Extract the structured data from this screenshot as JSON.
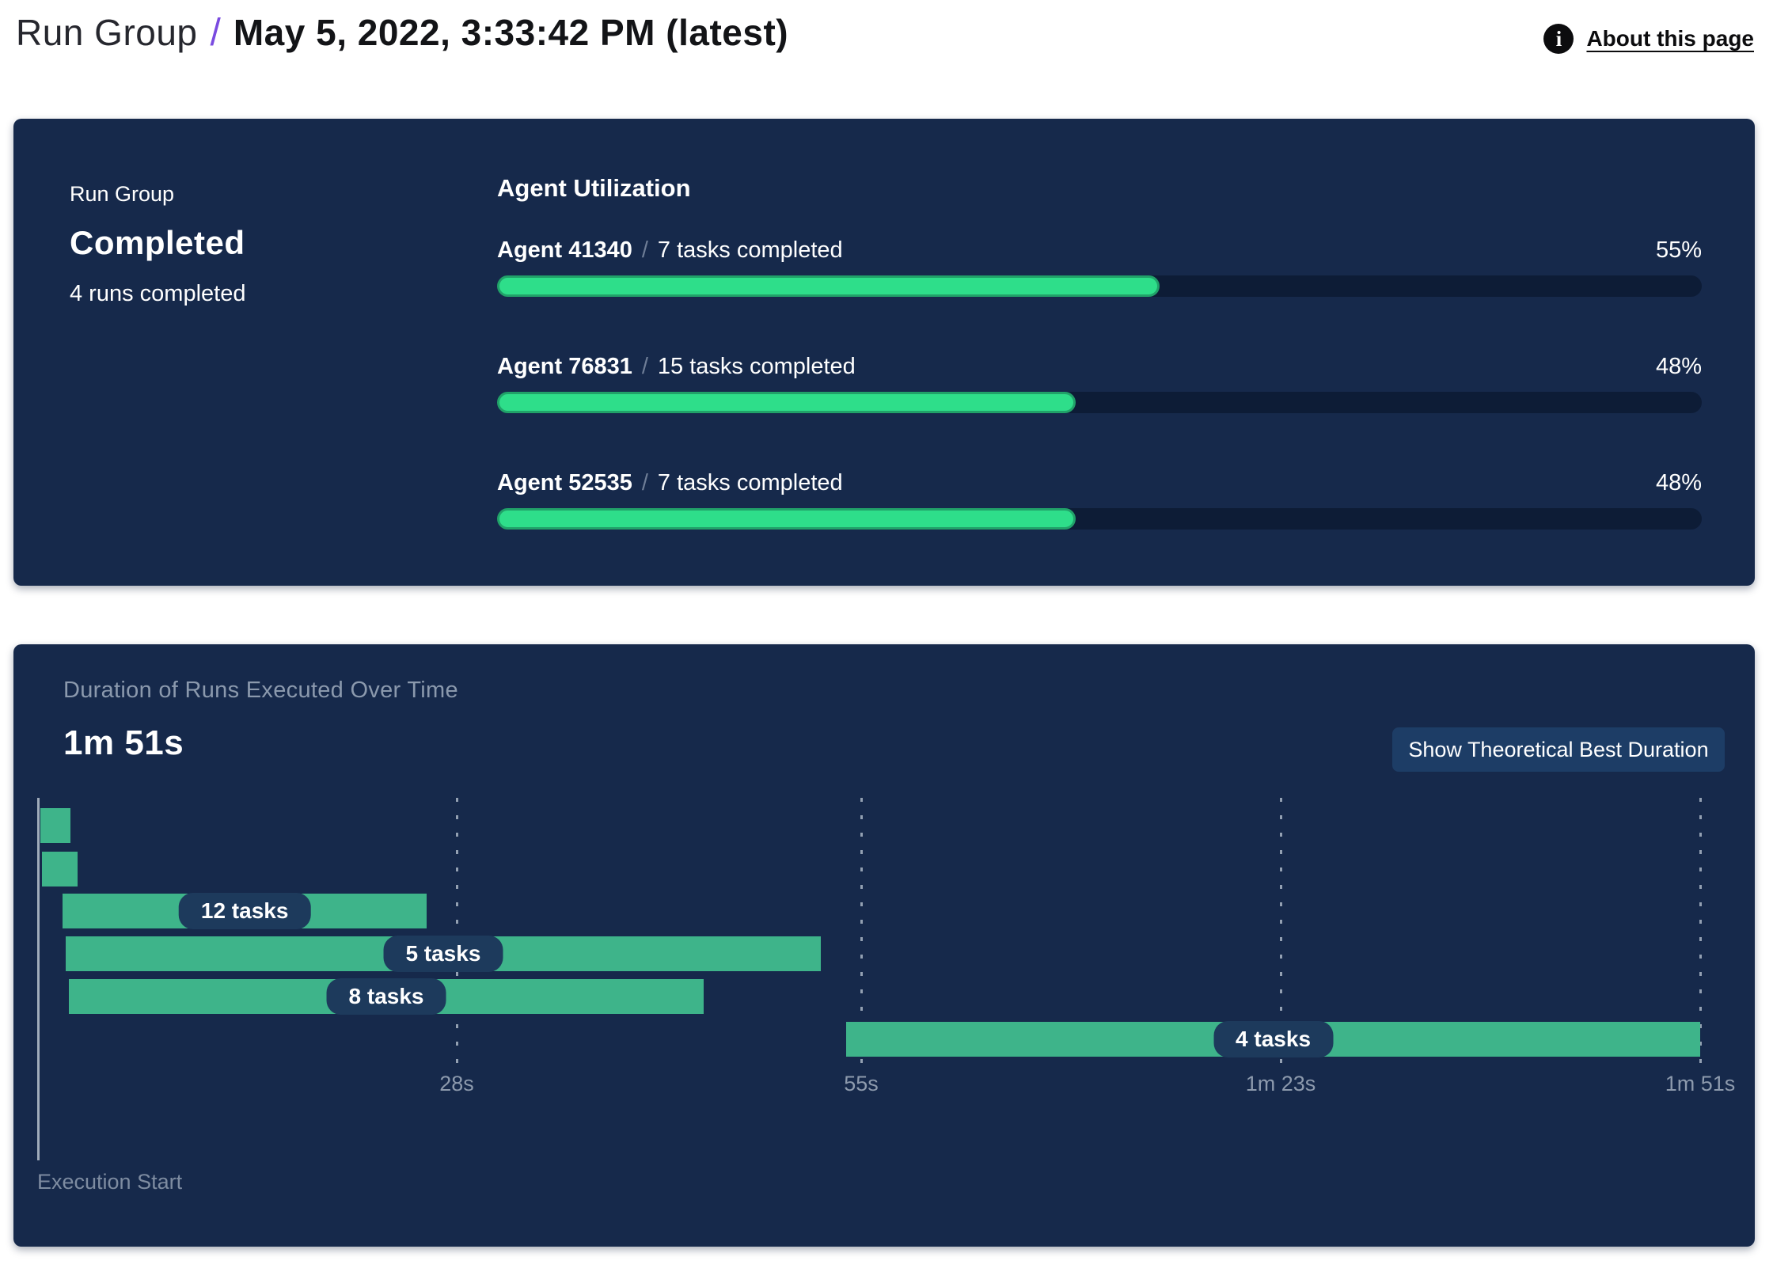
{
  "header": {
    "breadcrumb_root": "Run Group",
    "separator": "/",
    "title": "May 5, 2022, 3:33:42 PM (latest)",
    "about_label": "About this page",
    "info_icon_glyph": "i"
  },
  "run_summary": {
    "label": "Run Group",
    "status": "Completed",
    "detail": "4 runs completed"
  },
  "agent_utilization": {
    "heading": "Agent Utilization",
    "separator": "/",
    "agents": [
      {
        "name": "Agent 41340",
        "tasks": "7 tasks completed",
        "percent": 55,
        "percent_label": "55%"
      },
      {
        "name": "Agent 76831",
        "tasks": "15 tasks completed",
        "percent": 48,
        "percent_label": "48%"
      },
      {
        "name": "Agent 52535",
        "tasks": "7 tasks completed",
        "percent": 48,
        "percent_label": "48%"
      }
    ]
  },
  "duration_panel": {
    "title": "Duration of Runs Executed Over Time",
    "total_duration": "1m 51s",
    "button_label": "Show Theoretical Best Duration",
    "axis_caption": "Execution Start"
  },
  "chart_data": {
    "type": "bar",
    "subtype": "gantt-timeline",
    "title": "Duration of Runs Executed Over Time",
    "total_duration_label": "1m 51s",
    "x_axis_seconds_max": 111,
    "x_ticks": [
      {
        "seconds": 28,
        "label": "28s"
      },
      {
        "seconds": 55,
        "label": "55s"
      },
      {
        "seconds": 83,
        "label": "1m 23s"
      },
      {
        "seconds": 111,
        "label": "1m 51s"
      }
    ],
    "bars": [
      {
        "start_seconds": 0.2,
        "end_seconds": 2.2,
        "label": ""
      },
      {
        "start_seconds": 0.3,
        "end_seconds": 2.7,
        "label": ""
      },
      {
        "start_seconds": 1.7,
        "end_seconds": 26.0,
        "label": "12 tasks"
      },
      {
        "start_seconds": 1.9,
        "end_seconds": 52.3,
        "label": "5 tasks"
      },
      {
        "start_seconds": 2.1,
        "end_seconds": 44.5,
        "label": "8 tasks"
      },
      {
        "start_seconds": 54.0,
        "end_seconds": 111.0,
        "label": "4 tasks"
      }
    ],
    "colors": {
      "panel_bg": "#16294b",
      "bar_green": "#3eb48a",
      "utilization_green": "#2ede8a",
      "utilization_green_border": "#21a169",
      "track_bg": "#0d1c36",
      "pill_bg": "#1d3a5c",
      "accent_purple": "#7a4be0",
      "muted_text": "#8d9aad"
    }
  }
}
